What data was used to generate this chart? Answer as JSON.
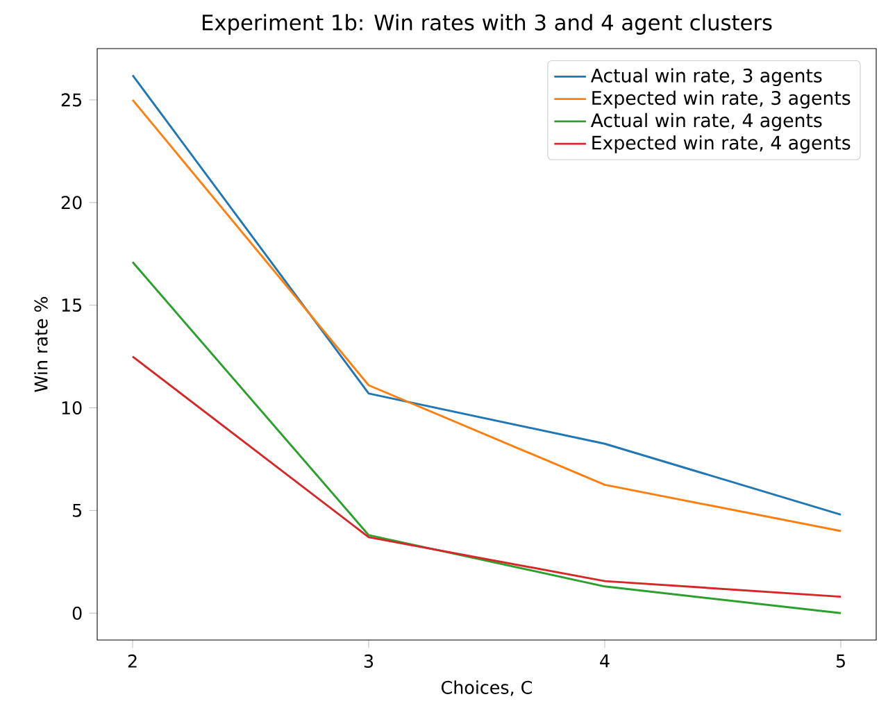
{
  "chart_data": {
    "type": "line",
    "title": "Experiment 1b: Win rates with 3 and 4 agent clusters",
    "xlabel": "Choices, C",
    "ylabel": "Win rate %",
    "x": [
      2,
      3,
      4,
      5
    ],
    "series": [
      {
        "name": "Actual win rate, 3 agents",
        "color": "#1f77b4",
        "values": [
          26.2,
          10.7,
          8.25,
          4.8
        ]
      },
      {
        "name": "Expected win rate, 3 agents",
        "color": "#ff7f0e",
        "values": [
          25.0,
          11.1,
          6.25,
          4.0
        ]
      },
      {
        "name": "Actual win rate, 4 agents",
        "color": "#2ca02c",
        "values": [
          17.1,
          3.8,
          1.3,
          0.0
        ]
      },
      {
        "name": "Expected win rate, 4 agents",
        "color": "#d62728",
        "values": [
          12.5,
          3.7,
          1.56,
          0.8
        ]
      }
    ],
    "xlim": [
      1.85,
      5.15
    ],
    "ylim": [
      -1.31,
      27.5
    ],
    "xticks": [
      2,
      3,
      4,
      5
    ],
    "yticks": [
      0,
      5,
      10,
      15,
      20,
      25
    ],
    "legend": "top right",
    "grid": false,
    "marker": "none",
    "line_style": "solid"
  }
}
